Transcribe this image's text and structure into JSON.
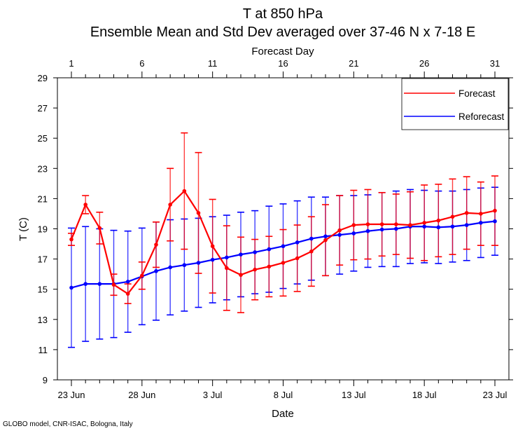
{
  "chart_data": {
    "type": "line",
    "title": "T at 850 hPa",
    "subtitle": "Ensemble Mean and Std Dev averaged over 37-46 N x 7-18 E",
    "xlabel": "Date",
    "x2label": "Forecast Day",
    "ylabel": "T (C)",
    "credit": "GLOBO model, CNR-ISAC, Bologna, Italy",
    "ylim": [
      9,
      29
    ],
    "yticks": [
      9,
      11,
      13,
      15,
      17,
      19,
      21,
      23,
      25,
      27,
      29
    ],
    "xlim": [
      0.5,
      31.5
    ],
    "x": [
      1,
      2,
      3,
      4,
      5,
      6,
      7,
      8,
      9,
      10,
      11,
      12,
      13,
      14,
      15,
      16,
      17,
      18,
      19,
      20,
      21,
      22,
      23,
      24,
      25,
      26,
      27,
      28,
      29,
      30,
      31
    ],
    "bottom_ticks": [
      {
        "day": 1,
        "label": "23 Jun"
      },
      {
        "day": 6,
        "label": "28 Jun"
      },
      {
        "day": 11,
        "label": "3 Jul"
      },
      {
        "day": 16,
        "label": "8 Jul"
      },
      {
        "day": 21,
        "label": "13 Jul"
      },
      {
        "day": 26,
        "label": "18 Jul"
      },
      {
        "day": 31,
        "label": "23 Jul"
      }
    ],
    "top_ticks": [
      {
        "day": 1,
        "label": "1"
      },
      {
        "day": 6,
        "label": "6"
      },
      {
        "day": 11,
        "label": "11"
      },
      {
        "day": 16,
        "label": "16"
      },
      {
        "day": 21,
        "label": "21"
      },
      {
        "day": 26,
        "label": "26"
      },
      {
        "day": 31,
        "label": "31"
      }
    ],
    "legend": {
      "position": "top-right"
    },
    "series": [
      {
        "name": "Forecast",
        "color": "#ff0000",
        "values": [
          18.3,
          20.6,
          19.05,
          15.3,
          14.7,
          15.9,
          17.95,
          20.6,
          21.5,
          20.05,
          17.85,
          16.4,
          15.95,
          16.3,
          16.5,
          16.75,
          17.05,
          17.5,
          18.25,
          18.9,
          19.25,
          19.3,
          19.3,
          19.3,
          19.25,
          19.4,
          19.55,
          19.8,
          20.05,
          20.0,
          20.2
        ],
        "std": [
          0.4,
          0.6,
          1.05,
          0.7,
          0.65,
          0.9,
          1.5,
          2.4,
          3.85,
          4.0,
          3.1,
          2.8,
          2.5,
          2.0,
          2.0,
          2.2,
          2.2,
          2.3,
          2.35,
          2.3,
          2.3,
          2.3,
          2.1,
          2.0,
          2.2,
          2.5,
          2.4,
          2.5,
          2.4,
          2.1,
          2.3
        ]
      },
      {
        "name": "Reforecast",
        "color": "#0000ff",
        "values": [
          15.1,
          15.35,
          15.35,
          15.35,
          15.5,
          15.85,
          16.2,
          16.45,
          16.6,
          16.75,
          16.95,
          17.1,
          17.3,
          17.45,
          17.65,
          17.85,
          18.1,
          18.35,
          18.5,
          18.6,
          18.7,
          18.85,
          18.95,
          19.0,
          19.15,
          19.15,
          19.1,
          19.15,
          19.25,
          19.4,
          19.5
        ],
        "std": [
          3.95,
          3.8,
          3.65,
          3.55,
          3.35,
          3.2,
          3.25,
          3.15,
          3.05,
          2.95,
          2.85,
          2.8,
          2.8,
          2.75,
          2.85,
          2.8,
          2.75,
          2.75,
          2.6,
          2.6,
          2.5,
          2.4,
          2.45,
          2.5,
          2.45,
          2.4,
          2.4,
          2.35,
          2.35,
          2.3,
          2.25
        ]
      }
    ]
  }
}
